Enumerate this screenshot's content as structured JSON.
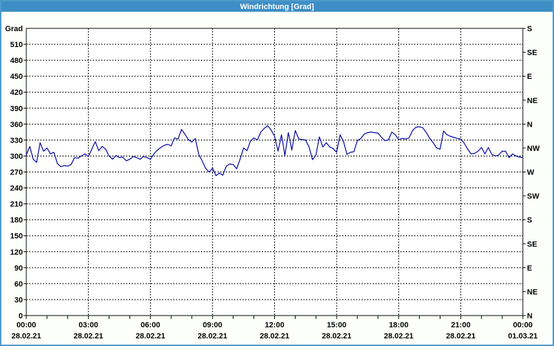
{
  "title": "Windrichtung [Grad]",
  "colors": {
    "titlebar": "#3e8ec5",
    "border": "#4e9acb",
    "background": "#fdfffb",
    "plot_background": "#ffffff",
    "axis": "#000000",
    "grid": "#000000",
    "line": "#0000a0"
  },
  "chart_data": {
    "type": "line",
    "title": "Windrichtung [Grad]",
    "ylabel_left": "Grad",
    "ylim": [
      0,
      540
    ],
    "xlim_hours": [
      0,
      24
    ],
    "grid": true,
    "grid_style": "dashed",
    "y_tick_step_left": 30,
    "y_ticks_left": [
      0,
      30,
      60,
      90,
      120,
      150,
      180,
      210,
      240,
      270,
      300,
      330,
      360,
      390,
      420,
      450,
      480,
      510
    ],
    "y_ticks_right": [
      {
        "value": 0,
        "label": "N"
      },
      {
        "value": 45,
        "label": "NE"
      },
      {
        "value": 90,
        "label": "E"
      },
      {
        "value": 135,
        "label": "SE"
      },
      {
        "value": 180,
        "label": "S"
      },
      {
        "value": 225,
        "label": "SW"
      },
      {
        "value": 270,
        "label": "W"
      },
      {
        "value": 315,
        "label": "NW"
      },
      {
        "value": 360,
        "label": "N"
      },
      {
        "value": 405,
        "label": "NE"
      },
      {
        "value": 450,
        "label": "E"
      },
      {
        "value": 495,
        "label": "SE"
      },
      {
        "value": 540,
        "label": "S"
      }
    ],
    "x_ticks": [
      {
        "hour": 0,
        "time": "00:00",
        "date": "28.02.21"
      },
      {
        "hour": 3,
        "time": "03:00",
        "date": "28.02.21"
      },
      {
        "hour": 6,
        "time": "06:00",
        "date": "28.02.21"
      },
      {
        "hour": 9,
        "time": "09:00",
        "date": "28.02.21"
      },
      {
        "hour": 12,
        "time": "12:00",
        "date": "28.02.21"
      },
      {
        "hour": 15,
        "time": "15:00",
        "date": "28.02.21"
      },
      {
        "hour": 18,
        "time": "18:00",
        "date": "28.02.21"
      },
      {
        "hour": 21,
        "time": "21:00",
        "date": "28.02.21"
      },
      {
        "hour": 24,
        "time": "00:00",
        "date": "01.03.21"
      }
    ],
    "minor_x_tick_every_hours": 1,
    "series": [
      {
        "name": "Windrichtung",
        "unit": "Grad",
        "color": "#0000a0",
        "start_time": "00:00",
        "interval_minutes": 10,
        "values": [
          302,
          318,
          294,
          288,
          325,
          309,
          315,
          304,
          307,
          286,
          280,
          282,
          281,
          284,
          297,
          296,
          300,
          304,
          299,
          313,
          327,
          310,
          318,
          313,
          300,
          294,
          301,
          297,
          298,
          291,
          294,
          299,
          297,
          294,
          299,
          297,
          294,
          304,
          311,
          316,
          320,
          322,
          319,
          334,
          332,
          350,
          341,
          331,
          326,
          333,
          303,
          291,
          277,
          270,
          277,
          263,
          268,
          264,
          281,
          285,
          284,
          276,
          294,
          315,
          310,
          328,
          334,
          330,
          345,
          352,
          357,
          349,
          337,
          309,
          340,
          301,
          344,
          311,
          348,
          332,
          331,
          330,
          317,
          293,
          302,
          336,
          317,
          325,
          317,
          314,
          307,
          340,
          327,
          303,
          307,
          308,
          329,
          333,
          341,
          344,
          345,
          344,
          343,
          335,
          329,
          330,
          345,
          340,
          331,
          333,
          332,
          334,
          348,
          354,
          355,
          353,
          344,
          333,
          325,
          315,
          313,
          347,
          340,
          337,
          335,
          333,
          332,
          324,
          313,
          304,
          305,
          309,
          316,
          304,
          316,
          303,
          300,
          302,
          309,
          309,
          297,
          304,
          300,
          298,
          297
        ]
      }
    ]
  }
}
